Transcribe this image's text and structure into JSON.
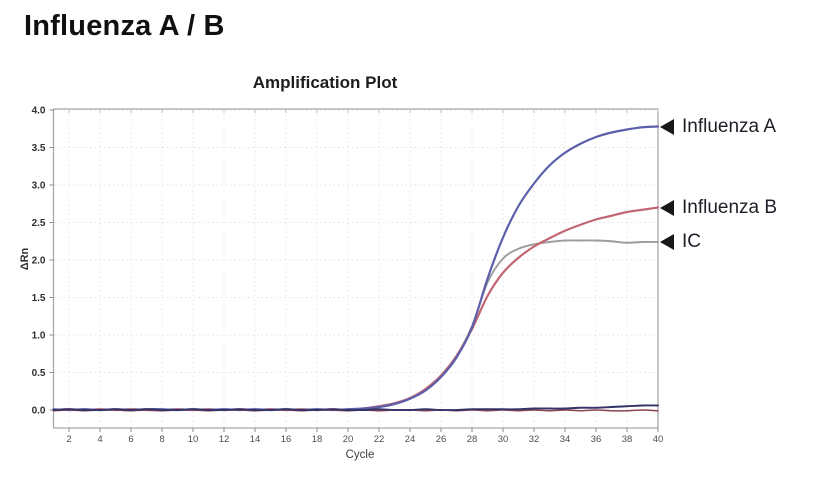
{
  "page": {
    "title": "Influenza A / B"
  },
  "chart": {
    "title": "Amplification Plot",
    "xlabel": "Cycle",
    "ylabel": "ΔRn"
  },
  "chart_data": {
    "type": "line",
    "title": "Amplification Plot",
    "xlabel": "Cycle",
    "ylabel": "ΔRn",
    "xlim": [
      1,
      40
    ],
    "ylim": [
      -0.24,
      4.0
    ],
    "grid": true,
    "x_ticks": [
      2,
      4,
      6,
      8,
      10,
      12,
      14,
      16,
      18,
      20,
      22,
      24,
      26,
      28,
      30,
      32,
      34,
      36,
      38,
      40
    ],
    "y_ticks": [
      0.0,
      0.5,
      1.0,
      1.5,
      2.0,
      2.5,
      3.0,
      3.5,
      4.0
    ],
    "y_tick_labels": [
      "0.0",
      "0.5",
      "1.0",
      "1.5",
      "2.0",
      "2.5",
      "3.0",
      "3.5",
      "4.0"
    ],
    "x_start": 1,
    "series": [
      {
        "name": "IC",
        "color": "#9c9c9c",
        "width": 1.9,
        "values": [
          0.0,
          0.0,
          0.01,
          0.0,
          0.0,
          0.01,
          0.0,
          0.0,
          0.01,
          0.0,
          0.0,
          0.01,
          0.0,
          0.0,
          0.01,
          0.0,
          0.0,
          0.01,
          0.0,
          0.0,
          0.02,
          0.04,
          0.08,
          0.15,
          0.27,
          0.45,
          0.72,
          1.12,
          1.7,
          2.02,
          2.15,
          2.21,
          2.24,
          2.26,
          2.26,
          2.26,
          2.25,
          2.23,
          2.24,
          2.24
        ]
      },
      {
        "name": "Influenza B",
        "color": "#c26672",
        "width": 2.2,
        "values": [
          0.0,
          0.01,
          0.0,
          0.01,
          0.0,
          0.01,
          0.0,
          0.0,
          0.01,
          0.0,
          0.01,
          0.0,
          0.01,
          0.0,
          0.01,
          0.0,
          0.01,
          0.0,
          0.01,
          0.0,
          0.02,
          0.05,
          0.09,
          0.16,
          0.28,
          0.46,
          0.72,
          1.08,
          1.52,
          1.83,
          2.03,
          2.18,
          2.29,
          2.39,
          2.47,
          2.54,
          2.59,
          2.64,
          2.67,
          2.7
        ]
      },
      {
        "name": "Influenza A",
        "color": "#5b5fa9",
        "width": 2.2,
        "values": [
          0.01,
          0.0,
          0.01,
          0.0,
          0.01,
          0.0,
          0.01,
          0.01,
          0.0,
          0.01,
          0.0,
          0.01,
          0.0,
          0.01,
          0.0,
          0.01,
          0.0,
          0.01,
          0.0,
          0.01,
          0.02,
          0.04,
          0.08,
          0.15,
          0.26,
          0.44,
          0.7,
          1.1,
          1.75,
          2.3,
          2.72,
          3.02,
          3.26,
          3.43,
          3.55,
          3.64,
          3.7,
          3.74,
          3.77,
          3.78
        ]
      },
      {
        "name": "baseline trace dark red",
        "color": "#8c4450",
        "width": 1.5,
        "values": [
          -0.01,
          0.0,
          -0.01,
          0.0,
          0.0,
          -0.01,
          0.0,
          -0.01,
          0.0,
          0.0,
          -0.01,
          0.0,
          0.0,
          -0.01,
          0.0,
          0.0,
          -0.01,
          0.0,
          0.0,
          -0.01,
          0.0,
          -0.01,
          0.0,
          0.0,
          -0.01,
          0.0,
          -0.01,
          0.0,
          -0.01,
          0.0,
          -0.01,
          0.0,
          -0.01,
          0.0,
          -0.01,
          0.0,
          -0.01,
          -0.01,
          0.0,
          -0.01
        ]
      },
      {
        "name": "baseline trace navy",
        "color": "#343468",
        "width": 1.9,
        "values": [
          0.0,
          0.01,
          0.0,
          0.0,
          0.01,
          0.0,
          0.01,
          0.0,
          0.0,
          0.01,
          0.0,
          0.0,
          0.01,
          0.0,
          0.0,
          0.01,
          0.0,
          0.0,
          0.01,
          0.0,
          0.0,
          0.01,
          0.0,
          0.0,
          0.01,
          0.0,
          0.0,
          0.01,
          0.01,
          0.01,
          0.01,
          0.02,
          0.02,
          0.02,
          0.03,
          0.03,
          0.04,
          0.05,
          0.06,
          0.06
        ]
      }
    ],
    "annotations": [
      {
        "label": "Influenza A",
        "value": 3.78
      },
      {
        "label": "Influenza B",
        "value": 2.7
      },
      {
        "label": "IC",
        "value": 2.24
      }
    ],
    "style": {
      "frame_color": "#a3a3a3",
      "h_grid_color": "#e9dede",
      "v_grid_color": "#e5e5e5",
      "tick_color": "#8a8a8a",
      "y_tick_label_color": "#2f2f2f",
      "x_tick_label_color": "#4d4d4d",
      "arrow_color": "#181818"
    }
  }
}
